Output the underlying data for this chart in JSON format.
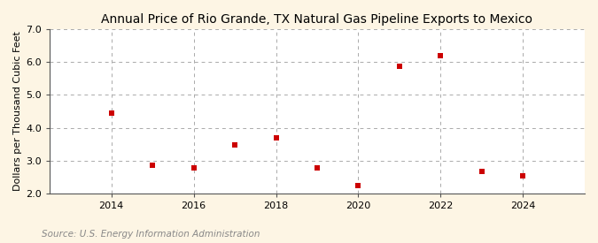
{
  "title": "Annual Price of Rio Grande, TX Natural Gas Pipeline Exports to Mexico",
  "ylabel": "Dollars per Thousand Cubic Feet",
  "source": "Source: U.S. Energy Information Administration",
  "years": [
    2014,
    2015,
    2016,
    2017,
    2018,
    2019,
    2020,
    2021,
    2022,
    2023,
    2024
  ],
  "values": [
    4.45,
    2.85,
    2.77,
    3.48,
    3.68,
    2.77,
    2.25,
    5.88,
    6.2,
    2.67,
    2.55
  ],
  "xlim": [
    2012.5,
    2025.5
  ],
  "ylim": [
    2.0,
    7.0
  ],
  "yticks": [
    2.0,
    3.0,
    4.0,
    5.0,
    6.0,
    7.0
  ],
  "xticks": [
    2014,
    2016,
    2018,
    2020,
    2022,
    2024
  ],
  "marker_color": "#cc0000",
  "marker": "s",
  "marker_size": 4,
  "fig_background_color": "#fdf5e4",
  "plot_background_color": "#ffffff",
  "grid_color": "#aaaaaa",
  "title_fontsize": 10,
  "label_fontsize": 8,
  "tick_fontsize": 8,
  "source_fontsize": 7.5,
  "source_color": "#888888"
}
